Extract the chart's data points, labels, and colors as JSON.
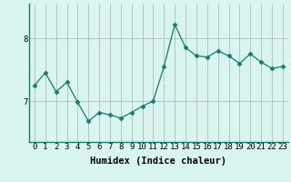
{
  "x": [
    0,
    1,
    2,
    3,
    4,
    5,
    6,
    7,
    8,
    9,
    10,
    11,
    12,
    13,
    14,
    15,
    16,
    17,
    18,
    19,
    20,
    21,
    22,
    23
  ],
  "y": [
    7.25,
    7.45,
    7.15,
    7.3,
    6.98,
    6.68,
    6.82,
    6.78,
    6.73,
    6.82,
    6.92,
    7.0,
    7.55,
    8.22,
    7.85,
    7.72,
    7.7,
    7.8,
    7.72,
    7.6,
    7.75,
    7.62,
    7.52,
    7.55
  ],
  "line_color": "#1a7a6e",
  "marker": "D",
  "marker_size": 2.5,
  "bg_color": "#d8f5f0",
  "grid_color": "#b0b0b0",
  "xlabel": "Humidex (Indice chaleur)",
  "xlabel_fontsize": 7.5,
  "tick_fontsize": 6.5,
  "yticks": [
    7,
    8
  ],
  "ylim": [
    6.35,
    8.55
  ],
  "xlim": [
    -0.5,
    23.5
  ],
  "title": ""
}
